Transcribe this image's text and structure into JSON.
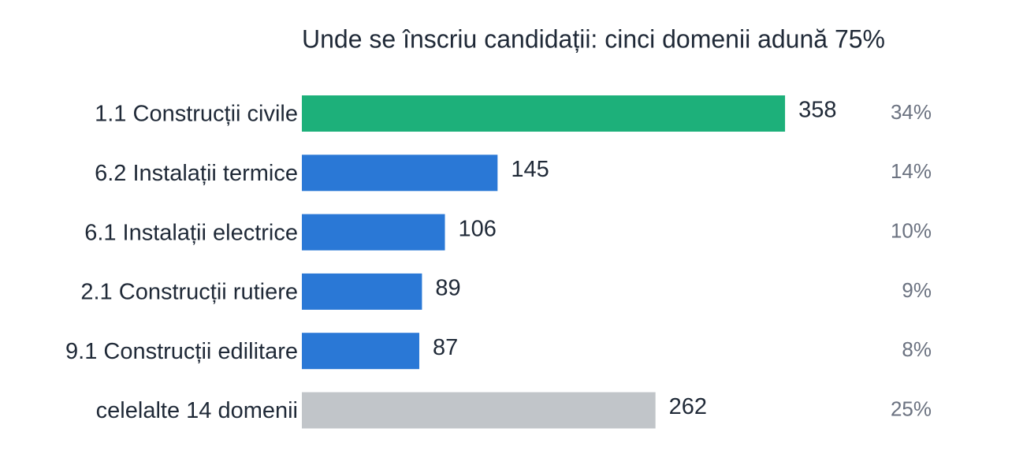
{
  "chart_data": {
    "type": "bar",
    "orientation": "horizontal",
    "title": "Unde se înscriu candidații: cinci domenii adună 75%",
    "categories": [
      "1.1 Construcții civile",
      "6.2 Instalații termice",
      "6.1 Instalații electrice",
      "2.1 Construcții rutiere",
      "9.1 Construcții edilitare",
      "celelalte 14 domenii"
    ],
    "values": [
      358,
      145,
      106,
      89,
      87,
      262
    ],
    "colors": [
      "#1db07a",
      "#2a78d6",
      "#2a78d6",
      "#2a78d6",
      "#2a78d6",
      "#c1c5c9"
    ],
    "share_labels": [
      "34%",
      "14%",
      "10%",
      "9%",
      "8%",
      "25%"
    ],
    "xlim": [
      0,
      400
    ]
  }
}
